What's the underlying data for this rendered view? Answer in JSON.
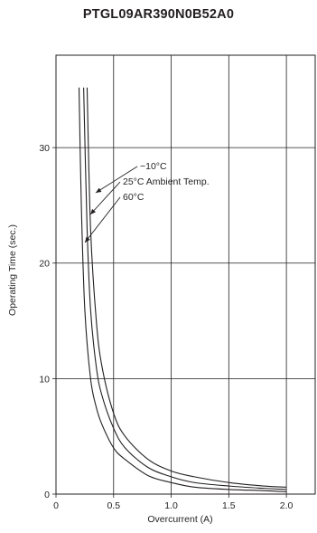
{
  "chart_data": {
    "type": "line",
    "title": "PTGL09AR390N0B52A0",
    "xlabel": "Overcurrent (A)",
    "ylabel": "Operating Time (sec.)",
    "xlim": [
      0,
      2.25
    ],
    "ylim": [
      0,
      38
    ],
    "x_ticks": [
      0,
      0.5,
      1.0,
      1.5,
      2.0
    ],
    "x_tick_labels": [
      "0",
      "0.5",
      "1.0",
      "1.5",
      "2.0"
    ],
    "y_ticks": [
      0,
      10,
      20,
      30
    ],
    "y_tick_labels": [
      "0",
      "10",
      "20",
      "30"
    ],
    "grid": true,
    "line_color": "#231f20",
    "series": [
      {
        "name": "-10°C",
        "x": [
          0.27,
          0.3,
          0.35,
          0.4,
          0.5,
          0.6,
          0.8,
          1.0,
          1.2,
          1.5,
          1.8,
          2.0
        ],
        "y": [
          35.2,
          23.0,
          15.0,
          11.0,
          7.0,
          5.0,
          3.0,
          2.0,
          1.5,
          1.0,
          0.7,
          0.6
        ]
      },
      {
        "name": "25°C Ambient Temp.",
        "x": [
          0.24,
          0.27,
          0.3,
          0.35,
          0.4,
          0.5,
          0.6,
          0.8,
          1.0,
          1.2,
          1.5,
          1.8,
          2.0
        ],
        "y": [
          35.2,
          23.0,
          16.0,
          11.0,
          8.5,
          5.7,
          4.0,
          2.3,
          1.5,
          1.0,
          0.7,
          0.5,
          0.4
        ]
      },
      {
        "name": "60°C",
        "x": [
          0.2,
          0.22,
          0.25,
          0.3,
          0.35,
          0.4,
          0.5,
          0.6,
          0.8,
          1.0,
          1.2,
          1.5,
          1.8,
          2.0
        ],
        "y": [
          35.2,
          25.0,
          16.0,
          10.0,
          7.5,
          6.0,
          4.0,
          3.0,
          1.6,
          1.0,
          0.6,
          0.4,
          0.3,
          0.2
        ]
      }
    ],
    "annotations": [
      "−10°C",
      "25°C Ambient Temp.",
      "60°C"
    ]
  }
}
